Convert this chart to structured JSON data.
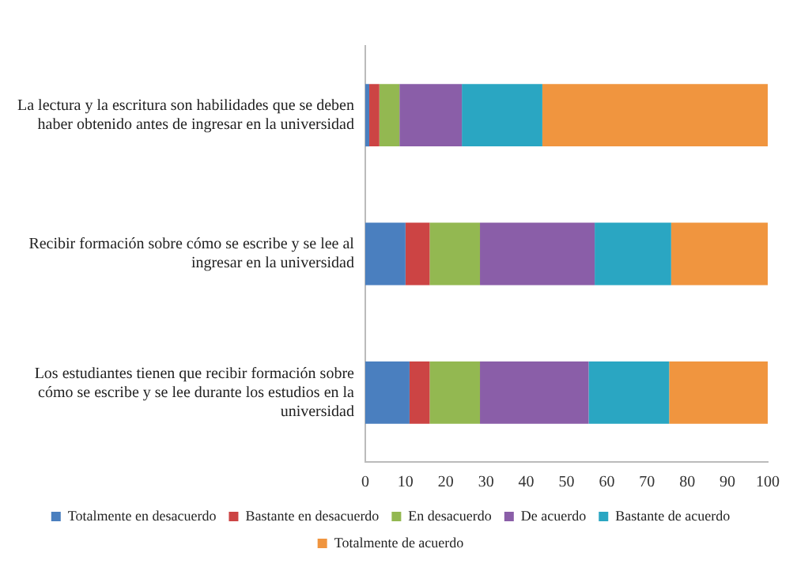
{
  "chart_data": {
    "type": "bar",
    "orientation": "horizontal",
    "stacked": true,
    "categories": [
      "La lectura y la escritura son habilidades que se deben haber obtenido antes de ingresar en la universidad",
      "Recibir formación sobre cómo se escribe y se lee al ingresar en la universidad",
      "Los estudiantes tienen que recibir formación sobre cómo se escribe y se lee durante los estudios en la universidad"
    ],
    "series": [
      {
        "name": "Totalmente en desacuerdo",
        "color": "#4a7fbf",
        "values": [
          1,
          10,
          11
        ]
      },
      {
        "name": "Bastante en desacuerdo",
        "color": "#cc4444",
        "values": [
          2.5,
          6,
          5
        ]
      },
      {
        "name": "En desacuerdo",
        "color": "#93b851",
        "values": [
          5,
          12.5,
          12.5
        ]
      },
      {
        "name": "De acuerdo",
        "color": "#8a5ea8",
        "values": [
          15.5,
          28.5,
          27
        ]
      },
      {
        "name": "Bastante de acuerdo",
        "color": "#2aa6c2",
        "values": [
          20,
          19,
          20
        ]
      },
      {
        "name": "Totalmente de acuerdo",
        "color": "#f0953f",
        "values": [
          56,
          24,
          24.5
        ]
      }
    ],
    "xlim": [
      0,
      100
    ],
    "xticks": [
      0,
      10,
      20,
      30,
      40,
      50,
      60,
      70,
      80,
      90,
      100
    ],
    "grid": false,
    "legend": "bottom"
  }
}
